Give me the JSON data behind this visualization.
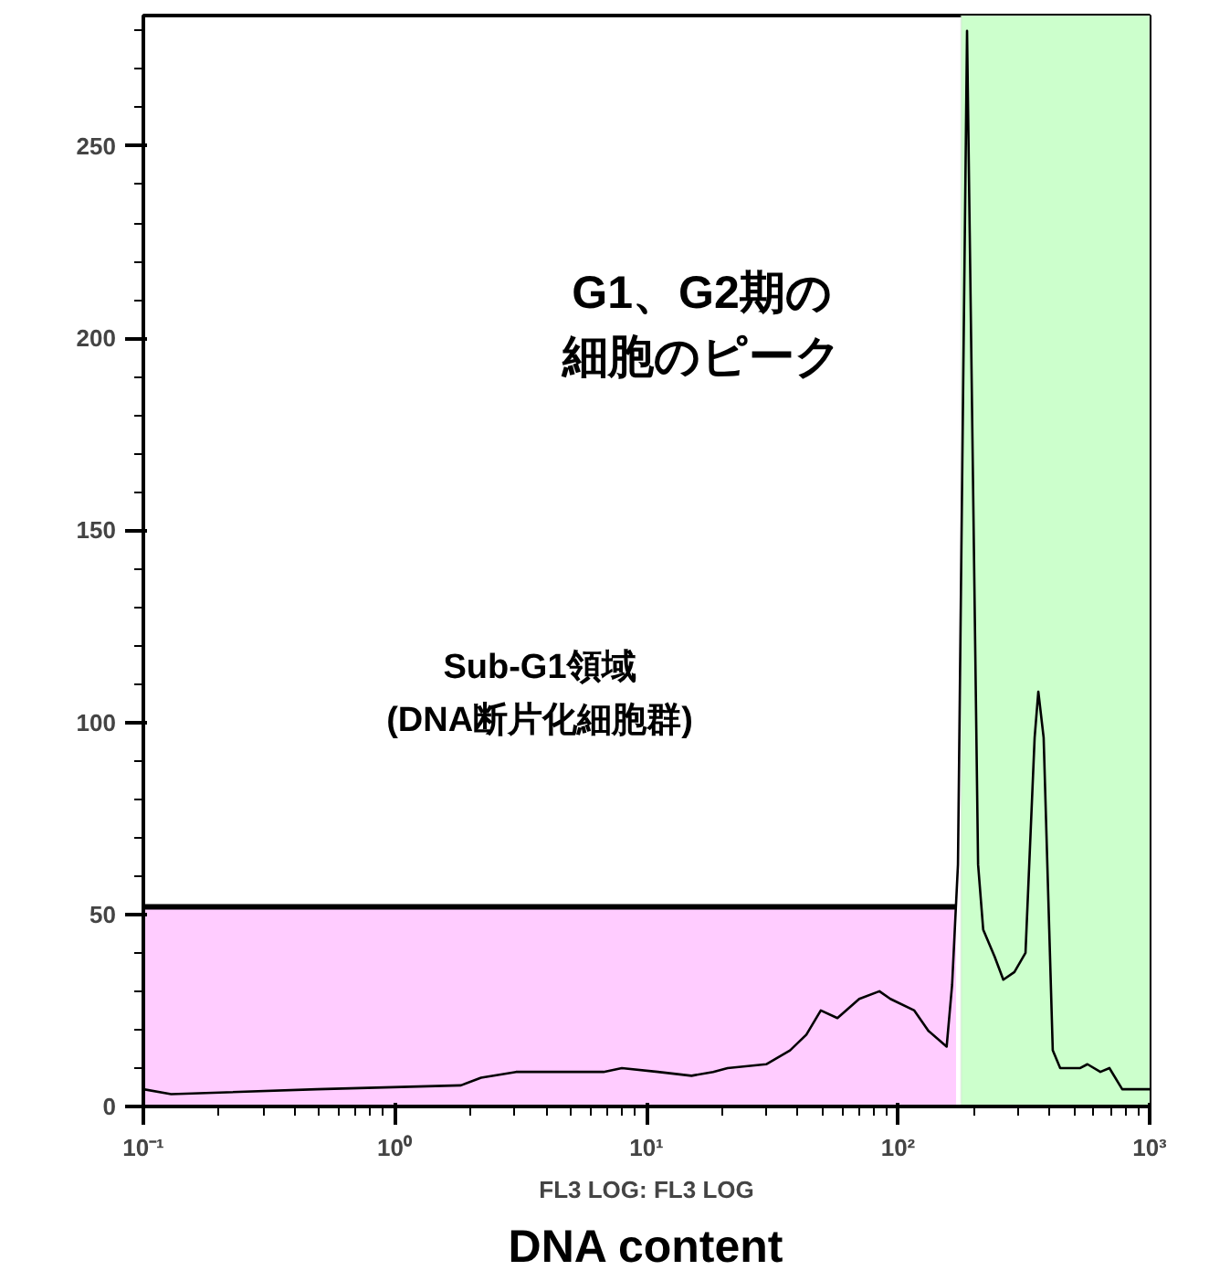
{
  "chart_data": {
    "type": "line",
    "xlabel": "FL3 LOG: FL3 LOG",
    "log": "x",
    "grid": false,
    "xlim": [
      0.1,
      1000
    ],
    "ylim": [
      0,
      284
    ],
    "xticks": [
      {
        "value": 0.1,
        "label": "10⁻¹"
      },
      {
        "value": 1,
        "label": "10⁰"
      },
      {
        "value": 10,
        "label": "10¹"
      },
      {
        "value": 100,
        "label": "10²"
      },
      {
        "value": 1000,
        "label": "10³"
      }
    ],
    "yticks": [
      0,
      50,
      100,
      150,
      200,
      250
    ],
    "bands": [
      {
        "axis": "x",
        "from": 178,
        "to": 1000,
        "color": "#ccffcc"
      }
    ],
    "series": [
      {
        "type": "area",
        "color": "#ffccff",
        "x": [
          0.1,
          170
        ],
        "values": [
          52,
          52
        ]
      },
      {
        "color": "#000000",
        "x": [
          0.1,
          0.129,
          0.49,
          1.83,
          2.2,
          3.03,
          6.75,
          7.98,
          11.1,
          15.1,
          18.4,
          21.0,
          29.9,
          37.2,
          43.2,
          49.3,
          57.4,
          70.1,
          84.3,
          93.2,
          116,
          132,
          156,
          164,
          173,
          188,
          208,
          218,
          242,
          262,
          290,
          321,
          349,
          361,
          379,
          412,
          441,
          530,
          566,
          637,
          692,
          778,
          1000
        ],
        "values": [
          4.5,
          3.2,
          4.5,
          5.5,
          7.5,
          9,
          9,
          10,
          9,
          8,
          9,
          10,
          11,
          14.6,
          18.7,
          25,
          23,
          28,
          30,
          28,
          25,
          19.7,
          15.6,
          31.7,
          63,
          280,
          63,
          46,
          39,
          33,
          35,
          40,
          96,
          108,
          96,
          14.6,
          10,
          10,
          11,
          9,
          10,
          4.5,
          4.5
        ]
      }
    ],
    "annotations": [
      "G1、G2期の",
      "細胞のピーク",
      "Sub-G1領域",
      "(DNA断片化細胞群)",
      "DNA content"
    ]
  }
}
